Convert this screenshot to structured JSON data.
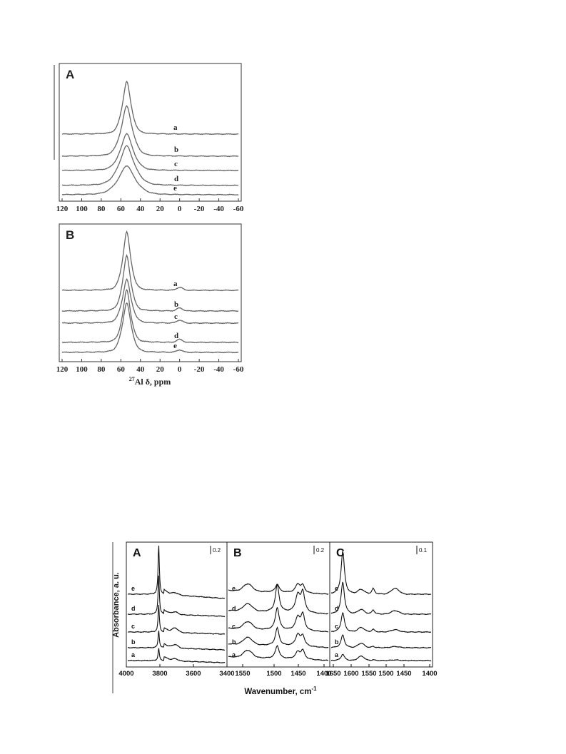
{
  "chart_data": [
    {
      "type": "line",
      "panel": "A",
      "xlabel": "",
      "ylabel": "",
      "xlim": [
        120,
        -60
      ],
      "x_reversed": true,
      "xticks": [
        "120",
        "100",
        "80",
        "60",
        "40",
        "20",
        "0",
        "-20",
        "-40",
        "-60"
      ],
      "peak_center": 54,
      "peak_secondary_center": 0,
      "series": [
        {
          "name": "a",
          "peak": 1.0,
          "width": 5.5,
          "secondary": 0.0
        },
        {
          "name": "b",
          "peak": 0.95,
          "width": 7.0,
          "secondary": 0.0
        },
        {
          "name": "c",
          "peak": 0.7,
          "width": 8.0,
          "secondary": 0.0
        },
        {
          "name": "d",
          "peak": 0.75,
          "width": 9.5,
          "secondary": 0.0
        },
        {
          "name": "e",
          "peak": 0.55,
          "width": 10.5,
          "secondary": 0.0
        }
      ]
    },
    {
      "type": "line",
      "panel": "B",
      "xlabel": "27Al δ, ppm",
      "ylabel": "",
      "xlim": [
        120,
        -60
      ],
      "x_reversed": true,
      "xticks": [
        "120",
        "100",
        "80",
        "60",
        "40",
        "20",
        "0",
        "-20",
        "-40",
        "-60"
      ],
      "peak_center": 54,
      "peak_secondary_center": 0,
      "series": [
        {
          "name": "a",
          "peak": 1.0,
          "width": 5.0,
          "secondary": 0.05
        },
        {
          "name": "b",
          "peak": 0.95,
          "width": 5.0,
          "secondary": 0.05
        },
        {
          "name": "c",
          "peak": 0.75,
          "width": 5.5,
          "secondary": 0.05
        },
        {
          "name": "d",
          "peak": 0.9,
          "width": 5.0,
          "secondary": 0.05
        },
        {
          "name": "e",
          "peak": 0.85,
          "width": 5.5,
          "secondary": 0.04
        }
      ]
    },
    {
      "type": "line",
      "panel": "A",
      "scale_bar": "0.2",
      "xlim": [
        4000,
        3200
      ],
      "x_reversed": true,
      "xticks": [
        "4000",
        "3800",
        "3600",
        "3400"
      ],
      "series": [
        {
          "name": "e",
          "p1": 1.0,
          "p2": 0.05
        },
        {
          "name": "d",
          "p1": 0.8,
          "p2": 0.06
        },
        {
          "name": "c",
          "p1": 0.55,
          "p2": 0.1
        },
        {
          "name": "b",
          "p1": 0.35,
          "p2": 0.08
        },
        {
          "name": "a",
          "p1": 0.25,
          "p2": 0.05
        }
      ]
    },
    {
      "type": "line",
      "panel": "B",
      "scale_bar": "0.2",
      "xlim": [
        1580,
        1400
      ],
      "x_reversed": true,
      "xticks": [
        "1550",
        "1500",
        "1450",
        "1400"
      ],
      "series": [
        {
          "name": "e",
          "p1": 0.25,
          "p2": 0.3,
          "p3": 0.25
        },
        {
          "name": "d",
          "p1": 0.85,
          "p2": 0.6,
          "p3": 0.7
        },
        {
          "name": "c",
          "p1": 0.7,
          "p2": 0.45,
          "p3": 0.55
        },
        {
          "name": "b",
          "p1": 0.55,
          "p2": 0.4,
          "p3": 0.35
        },
        {
          "name": "a",
          "p1": 0.4,
          "p2": 0.25,
          "p3": 0.3
        }
      ]
    },
    {
      "type": "line",
      "panel": "C",
      "scale_bar": "0.1",
      "xlim": [
        1650,
        1400
      ],
      "x_reversed": true,
      "xticks": [
        "1650",
        "1600",
        "1550",
        "1500",
        "1450",
        "1400"
      ],
      "series": [
        {
          "name": "e",
          "p1": 1.0,
          "p2": 0.2,
          "p3": 0.2
        },
        {
          "name": "d",
          "p1": 0.75,
          "p2": 0.15,
          "p3": 0.12
        },
        {
          "name": "c",
          "p1": 0.45,
          "p2": 0.1,
          "p3": 0.08
        },
        {
          "name": "b",
          "p1": 0.3,
          "p2": 0.05,
          "p3": 0.04
        },
        {
          "name": "a",
          "p1": 0.15,
          "p2": 0.03,
          "p3": 0.02
        }
      ]
    }
  ],
  "ir_figure": {
    "ylabel": "Absorbance, a. u.",
    "xlabel": "Wavenumber, cm",
    "xlabel_sup": "-1"
  }
}
